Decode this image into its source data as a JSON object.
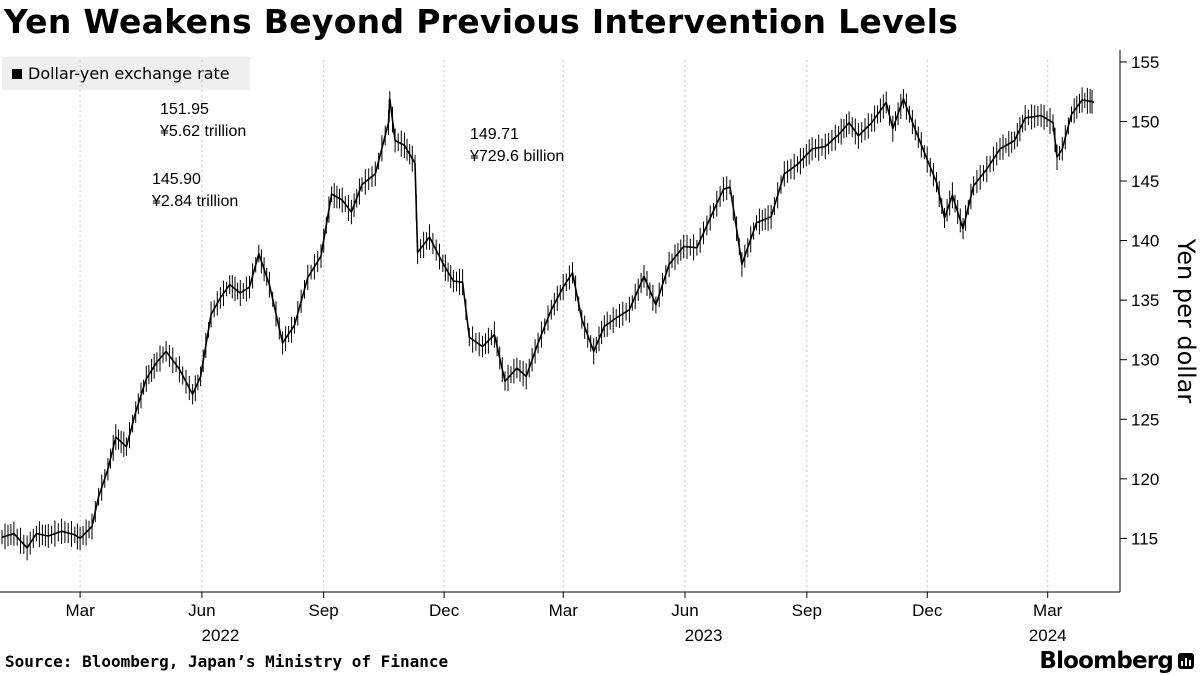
{
  "title": "Yen Weakens Beyond Previous Intervention Levels",
  "legend_label": "Dollar-yen exchange rate",
  "source": "Source: Bloomberg, Japan’s Ministry of Finance",
  "brand": "Bloomberg",
  "chart_data": {
    "type": "line",
    "title": "Yen Weakens Beyond Previous Intervention Levels",
    "ylabel": "Yen per dollar",
    "xlabel": "",
    "ylim": [
      110.5,
      156
    ],
    "yticks": [
      115,
      120,
      125,
      130,
      135,
      140,
      145,
      150,
      155
    ],
    "x_month_ticks": [
      "Mar",
      "Jun",
      "Sep",
      "Dec",
      "Mar",
      "Jun",
      "Sep",
      "Dec",
      "Mar"
    ],
    "x_year_labels": [
      "2022",
      "2023",
      "2024"
    ],
    "grid": "vertical dotted",
    "legend": "top-left",
    "series": [
      {
        "name": "Dollar-yen exchange rate",
        "color": "#000000",
        "points": [
          [
            "2022-01-01",
            115.1
          ],
          [
            "2022-01-10",
            115.4
          ],
          [
            "2022-01-20",
            114.2
          ],
          [
            "2022-01-27",
            115.4
          ],
          [
            "2022-02-05",
            115.2
          ],
          [
            "2022-02-15",
            115.6
          ],
          [
            "2022-02-25",
            115.3
          ],
          [
            "2022-03-01",
            115.0
          ],
          [
            "2022-03-10",
            116.0
          ],
          [
            "2022-03-15",
            118.5
          ],
          [
            "2022-03-22",
            120.8
          ],
          [
            "2022-03-28",
            123.5
          ],
          [
            "2022-04-05",
            122.7
          ],
          [
            "2022-04-12",
            125.6
          ],
          [
            "2022-04-20",
            128.4
          ],
          [
            "2022-04-28",
            129.8
          ],
          [
            "2022-05-05",
            130.7
          ],
          [
            "2022-05-15",
            129.2
          ],
          [
            "2022-05-25",
            127.1
          ],
          [
            "2022-05-31",
            128.6
          ],
          [
            "2022-06-08",
            133.8
          ],
          [
            "2022-06-15",
            135.2
          ],
          [
            "2022-06-22",
            136.3
          ],
          [
            "2022-06-30",
            135.6
          ],
          [
            "2022-07-07",
            136.1
          ],
          [
            "2022-07-14",
            138.9
          ],
          [
            "2022-07-22",
            136.3
          ],
          [
            "2022-08-01",
            131.4
          ],
          [
            "2022-08-10",
            132.9
          ],
          [
            "2022-08-20",
            136.9
          ],
          [
            "2022-08-30",
            138.7
          ],
          [
            "2022-09-07",
            143.9
          ],
          [
            "2022-09-15",
            143.4
          ],
          [
            "2022-09-22",
            142.4
          ],
          [
            "2022-09-30",
            144.7
          ],
          [
            "2022-10-10",
            145.6
          ],
          [
            "2022-10-20",
            149.9
          ],
          [
            "2022-10-21",
            151.9
          ],
          [
            "2022-10-25",
            148.4
          ],
          [
            "2022-11-01",
            148.0
          ],
          [
            "2022-11-09",
            146.5
          ],
          [
            "2022-11-11",
            139.0
          ],
          [
            "2022-11-20",
            140.3
          ],
          [
            "2022-11-30",
            138.1
          ],
          [
            "2022-12-08",
            136.6
          ],
          [
            "2022-12-15",
            136.5
          ],
          [
            "2022-12-20",
            131.9
          ],
          [
            "2022-12-30",
            131.1
          ],
          [
            "2023-01-08",
            132.1
          ],
          [
            "2023-01-16",
            128.2
          ],
          [
            "2023-01-25",
            129.3
          ],
          [
            "2023-02-01",
            128.6
          ],
          [
            "2023-02-10",
            131.4
          ],
          [
            "2023-02-20",
            134.2
          ],
          [
            "2023-03-01",
            136.1
          ],
          [
            "2023-03-08",
            137.3
          ],
          [
            "2023-03-15",
            133.4
          ],
          [
            "2023-03-24",
            130.7
          ],
          [
            "2023-04-01",
            132.8
          ],
          [
            "2023-04-10",
            133.5
          ],
          [
            "2023-04-20",
            134.2
          ],
          [
            "2023-05-01",
            137.0
          ],
          [
            "2023-05-10",
            134.6
          ],
          [
            "2023-05-20",
            138.0
          ],
          [
            "2023-05-31",
            139.5
          ],
          [
            "2023-06-10",
            139.4
          ],
          [
            "2023-06-20",
            141.9
          ],
          [
            "2023-06-30",
            144.3
          ],
          [
            "2023-07-05",
            144.5
          ],
          [
            "2023-07-10",
            141.0
          ],
          [
            "2023-07-14",
            138.0
          ],
          [
            "2023-07-25",
            141.5
          ],
          [
            "2023-08-05",
            142.0
          ],
          [
            "2023-08-15",
            145.6
          ],
          [
            "2023-08-25",
            146.4
          ],
          [
            "2023-09-05",
            147.7
          ],
          [
            "2023-09-15",
            147.9
          ],
          [
            "2023-09-25",
            148.9
          ],
          [
            "2023-10-03",
            149.9
          ],
          [
            "2023-10-10",
            148.8
          ],
          [
            "2023-10-20",
            149.9
          ],
          [
            "2023-10-31",
            151.6
          ],
          [
            "2023-11-05",
            149.4
          ],
          [
            "2023-11-13",
            151.9
          ],
          [
            "2023-11-22",
            149.3
          ],
          [
            "2023-12-01",
            146.8
          ],
          [
            "2023-12-08",
            144.9
          ],
          [
            "2023-12-14",
            141.9
          ],
          [
            "2023-12-20",
            143.8
          ],
          [
            "2023-12-28",
            141.0
          ],
          [
            "2024-01-05",
            144.6
          ],
          [
            "2024-01-15",
            146.0
          ],
          [
            "2024-01-25",
            147.7
          ],
          [
            "2024-02-05",
            148.4
          ],
          [
            "2024-02-13",
            150.3
          ],
          [
            "2024-02-25",
            150.5
          ],
          [
            "2024-03-05",
            149.9
          ],
          [
            "2024-03-08",
            147.0
          ],
          [
            "2024-03-12",
            147.7
          ],
          [
            "2024-03-19",
            150.6
          ],
          [
            "2024-03-27",
            151.8
          ],
          [
            "2024-04-02",
            151.7
          ],
          [
            "2024-04-05",
            151.6
          ]
        ]
      }
    ],
    "annotations": [
      {
        "value": "151.95",
        "amount": "¥5.62 trillion"
      },
      {
        "value": "145.90",
        "amount": "¥2.84 trillion"
      },
      {
        "value": "149.71",
        "amount": "¥729.6 billion"
      }
    ]
  }
}
